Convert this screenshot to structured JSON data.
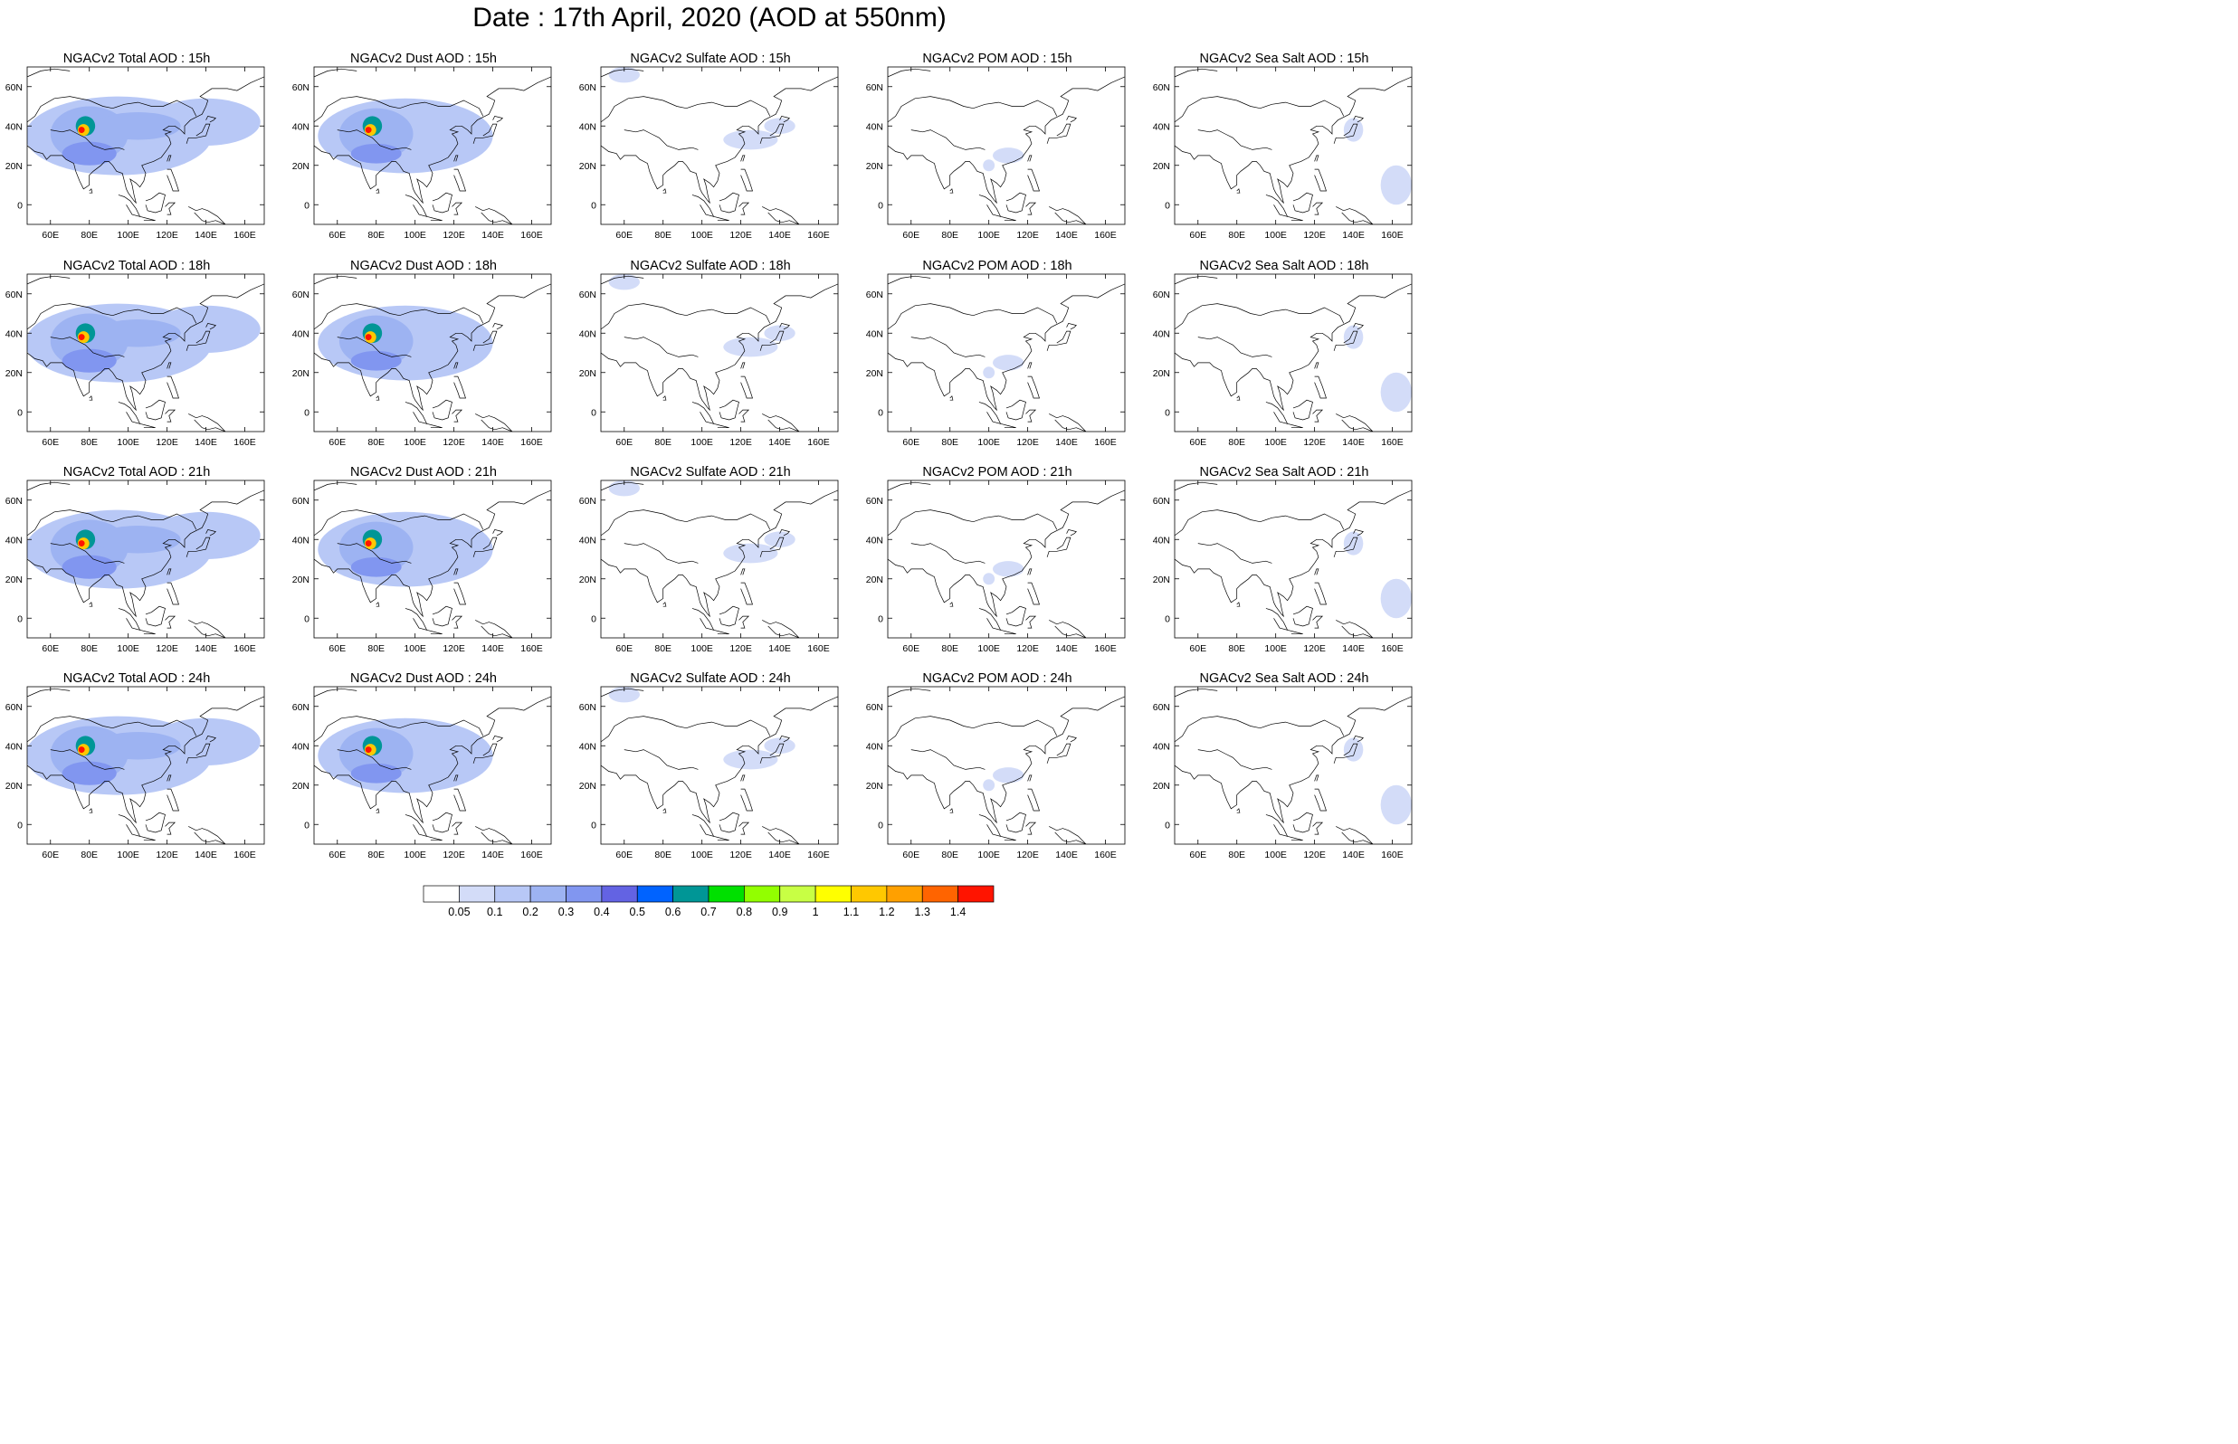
{
  "figure": {
    "title": "Date : 17th April, 2020 (AOD at 550nm)"
  },
  "panels": [
    {
      "row": 0,
      "col": 0,
      "title": "NGACv2 Total AOD : 15h",
      "species": "total"
    },
    {
      "row": 0,
      "col": 1,
      "title": "NGACv2 Dust AOD : 15h",
      "species": "dust"
    },
    {
      "row": 0,
      "col": 2,
      "title": "NGACv2 Sulfate AOD : 15h",
      "species": "sulfate"
    },
    {
      "row": 0,
      "col": 3,
      "title": "NGACv2 POM AOD : 15h",
      "species": "pom"
    },
    {
      "row": 0,
      "col": 4,
      "title": "NGACv2 Sea Salt AOD : 15h",
      "species": "seasalt"
    },
    {
      "row": 1,
      "col": 0,
      "title": "NGACv2 Total AOD : 18h",
      "species": "total"
    },
    {
      "row": 1,
      "col": 1,
      "title": "NGACv2 Dust AOD : 18h",
      "species": "dust"
    },
    {
      "row": 1,
      "col": 2,
      "title": "NGACv2 Sulfate AOD : 18h",
      "species": "sulfate"
    },
    {
      "row": 1,
      "col": 3,
      "title": "NGACv2 POM AOD : 18h",
      "species": "pom"
    },
    {
      "row": 1,
      "col": 4,
      "title": "NGACv2 Sea Salt AOD : 18h",
      "species": "seasalt"
    },
    {
      "row": 2,
      "col": 0,
      "title": "NGACv2 Total AOD : 21h",
      "species": "total"
    },
    {
      "row": 2,
      "col": 1,
      "title": "NGACv2 Dust AOD : 21h",
      "species": "dust"
    },
    {
      "row": 2,
      "col": 2,
      "title": "NGACv2 Sulfate AOD : 21h",
      "species": "sulfate"
    },
    {
      "row": 2,
      "col": 3,
      "title": "NGACv2 POM AOD : 21h",
      "species": "pom"
    },
    {
      "row": 2,
      "col": 4,
      "title": "NGACv2 Sea Salt AOD : 21h",
      "species": "seasalt"
    },
    {
      "row": 3,
      "col": 0,
      "title": "NGACv2 Total AOD : 24h",
      "species": "total"
    },
    {
      "row": 3,
      "col": 1,
      "title": "NGACv2 Dust AOD : 24h",
      "species": "dust"
    },
    {
      "row": 3,
      "col": 2,
      "title": "NGACv2 Sulfate AOD : 24h",
      "species": "sulfate"
    },
    {
      "row": 3,
      "col": 3,
      "title": "NGACv2 POM AOD : 24h",
      "species": "pom"
    },
    {
      "row": 3,
      "col": 4,
      "title": "NGACv2 Sea Salt  AOD : 24h",
      "species": "seasalt"
    }
  ],
  "map_extent": {
    "lon": [
      48,
      170
    ],
    "lat": [
      -10,
      70
    ]
  },
  "axes": {
    "lon_ticks": [
      {
        "lon": 60,
        "label": "60E"
      },
      {
        "lon": 80,
        "label": "80E"
      },
      {
        "lon": 100,
        "label": "100E"
      },
      {
        "lon": 120,
        "label": "120E"
      },
      {
        "lon": 140,
        "label": "140E"
      },
      {
        "lon": 160,
        "label": "160E"
      }
    ],
    "lat_ticks": [
      {
        "lat": 60,
        "label": "60N"
      },
      {
        "lat": 40,
        "label": "40N"
      },
      {
        "lat": 20,
        "label": "20N"
      },
      {
        "lat": 0,
        "label": "0"
      }
    ]
  },
  "colorbar": {
    "labels": [
      "0.05",
      "0.1",
      "0.2",
      "0.3",
      "0.4",
      "0.5",
      "0.6",
      "0.7",
      "0.8",
      "0.9",
      "1",
      "1.1",
      "1.2",
      "1.3",
      "1.4"
    ],
    "colors": [
      "#ffffff",
      "#d3dcf8",
      "#b8c8f6",
      "#9db3f2",
      "#8196f0",
      "#6363e3",
      "#0063ff",
      "#009696",
      "#00e000",
      "#92ff00",
      "#c8ff44",
      "#ffff00",
      "#ffc800",
      "#ffa000",
      "#ff6400",
      "#ff1400"
    ]
  },
  "aod_features": {
    "total": [
      {
        "lon": 95,
        "lat": 35,
        "rx": 48,
        "ry": 20,
        "aod": 0.15
      },
      {
        "lon": 140,
        "lat": 42,
        "rx": 28,
        "ry": 12,
        "aod": 0.15
      },
      {
        "lon": 80,
        "lat": 36,
        "rx": 20,
        "ry": 14,
        "aod": 0.25
      },
      {
        "lon": 105,
        "lat": 40,
        "rx": 22,
        "ry": 7,
        "aod": 0.25
      },
      {
        "lon": 80,
        "lat": 26,
        "rx": 14,
        "ry": 6,
        "aod": 0.35
      },
      {
        "lon": 78,
        "lat": 40,
        "rx": 5,
        "ry": 5,
        "aod": 0.65
      },
      {
        "lon": 77,
        "lat": 38,
        "rx": 3,
        "ry": 3,
        "aod": 1.15
      },
      {
        "lon": 76,
        "lat": 38,
        "rx": 1.6,
        "ry": 1.6,
        "aod": 1.45
      }
    ],
    "dust": [
      {
        "lon": 95,
        "lat": 35,
        "rx": 45,
        "ry": 19,
        "aod": 0.15
      },
      {
        "lon": 80,
        "lat": 36,
        "rx": 19,
        "ry": 13,
        "aod": 0.25
      },
      {
        "lon": 80,
        "lat": 26,
        "rx": 13,
        "ry": 5,
        "aod": 0.35
      },
      {
        "lon": 78,
        "lat": 40,
        "rx": 5,
        "ry": 5,
        "aod": 0.65
      },
      {
        "lon": 77,
        "lat": 38,
        "rx": 3,
        "ry": 3,
        "aod": 1.15
      },
      {
        "lon": 76,
        "lat": 38,
        "rx": 1.6,
        "ry": 1.6,
        "aod": 1.45
      }
    ],
    "sulfate": [
      {
        "lon": 125,
        "lat": 33,
        "rx": 14,
        "ry": 5,
        "aod": 0.08
      },
      {
        "lon": 140,
        "lat": 40,
        "rx": 8,
        "ry": 4,
        "aod": 0.08
      },
      {
        "lon": 60,
        "lat": 66,
        "rx": 8,
        "ry": 4,
        "aod": 0.08
      }
    ],
    "pom": [
      {
        "lon": 110,
        "lat": 25,
        "rx": 8,
        "ry": 4,
        "aod": 0.08
      },
      {
        "lon": 100,
        "lat": 20,
        "rx": 3,
        "ry": 3,
        "aod": 0.08
      }
    ],
    "seasalt": [
      {
        "lon": 140,
        "lat": 38,
        "rx": 5,
        "ry": 6,
        "aod": 0.08
      },
      {
        "lon": 162,
        "lat": 10,
        "rx": 8,
        "ry": 10,
        "aod": 0.08
      }
    ]
  }
}
